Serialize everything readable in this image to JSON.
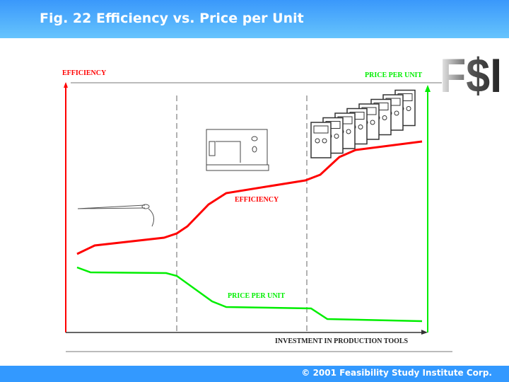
{
  "header": {
    "title": "Fig. 22  Efficiency vs. Price per Unit"
  },
  "footer": {
    "copyright": "© 2001 Feasibility Study Institute Corp."
  },
  "logo": {
    "text": "F$I"
  },
  "colors": {
    "efficiency": "#ff0000",
    "price": "#00ee00",
    "header": "#3399ff"
  },
  "chart_data": {
    "type": "line",
    "title": "Efficiency vs. Price per Unit",
    "xlabel": "INVESTMENT IN PRODUCTION TOOLS",
    "ylabel_left": "EFFICIENCY",
    "ylabel_right": "PRICE PER UNIT",
    "series": [
      {
        "name": "EFFICIENCY",
        "color": "#ff0000",
        "trend": "rising"
      },
      {
        "name": "PRICE PER UNIT",
        "color": "#00ee00",
        "trend": "falling"
      }
    ],
    "stages": [
      "needle-icon",
      "sewing-machine-icon",
      "production-machines-icon"
    ],
    "grid": false
  }
}
